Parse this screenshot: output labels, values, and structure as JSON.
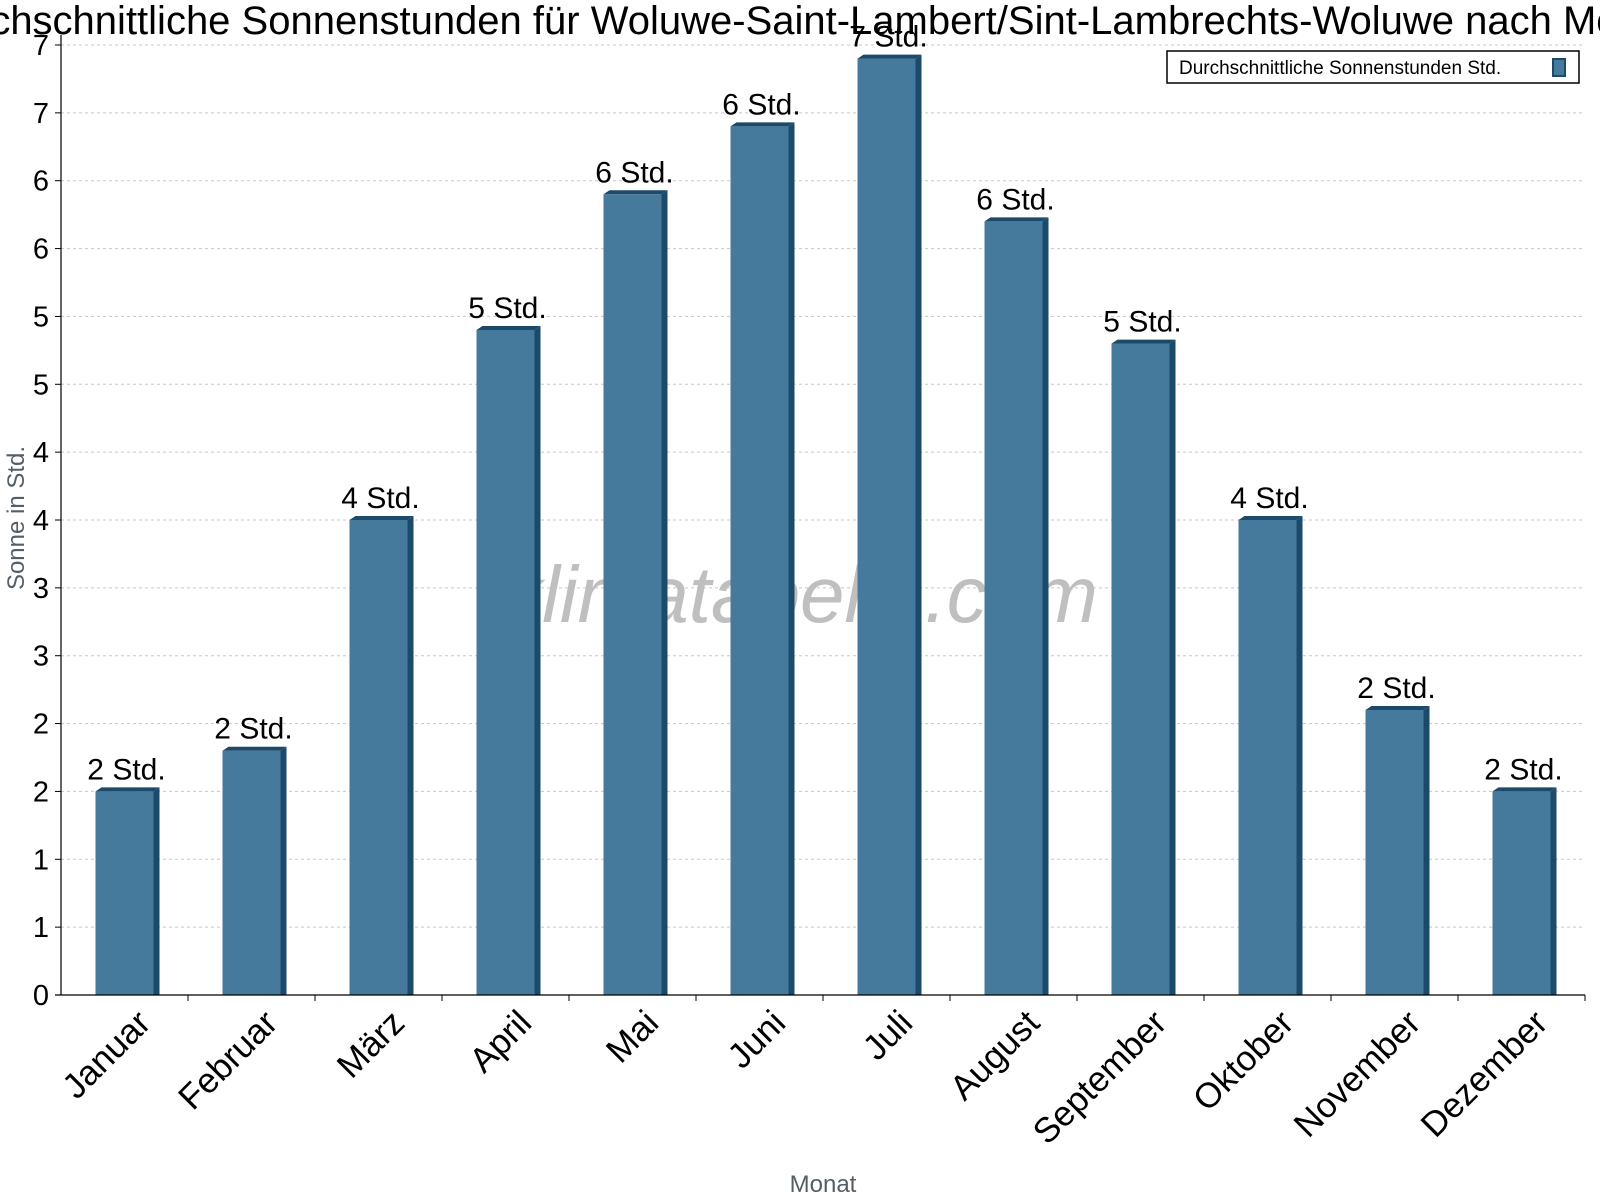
{
  "chart_data": {
    "type": "bar",
    "title": "Durchschnittliche Sonnenstunden für Woluwe-Saint-Lambert/Sint-Lambrechts-Woluwe nach Monat",
    "xlabel": "Monat",
    "ylabel": "Sonne in Std.",
    "ylim": [
      0,
      7
    ],
    "yticks": [
      "0",
      "1",
      "1",
      "2",
      "2",
      "3",
      "3",
      "4",
      "4",
      "5",
      "5",
      "6",
      "6",
      "7",
      "7"
    ],
    "grid": true,
    "legend_position": "top-right",
    "categories": [
      "Januar",
      "Februar",
      "März",
      "April",
      "Mai",
      "Juni",
      "Juli",
      "August",
      "September",
      "Oktober",
      "November",
      "Dezember"
    ],
    "series": [
      {
        "name": "Durchschnittliche Sonnenstunden Std.",
        "values": [
          1.5,
          1.8,
          3.5,
          4.9,
          5.9,
          6.4,
          6.9,
          5.7,
          4.8,
          3.5,
          2.1,
          1.5
        ],
        "labels": [
          "2 Std.",
          "2 Std.",
          "4 Std.",
          "5 Std.",
          "6 Std.",
          "6 Std.",
          "7 Std.",
          "6 Std.",
          "5 Std.",
          "4 Std.",
          "2 Std.",
          "2 Std."
        ],
        "color": "#467a9c"
      }
    ],
    "bar_side_color": "#1b4a6b",
    "watermark": "klimatabelle.com"
  }
}
